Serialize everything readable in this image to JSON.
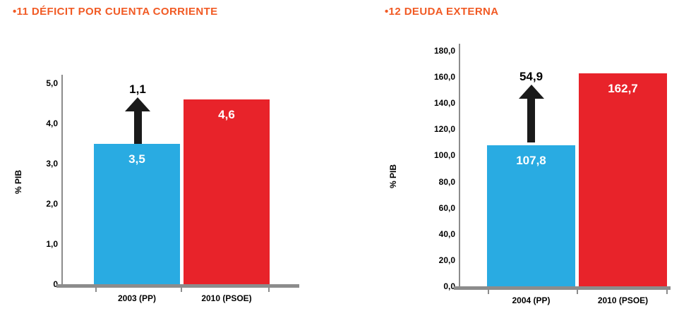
{
  "colors": {
    "title_orange": "#F15A24",
    "bar_blue": "#29ABE2",
    "bar_red": "#E8232A",
    "axis_gray": "#8C8C8C",
    "arrow_black": "#1A1A1A"
  },
  "chart_data": [
    {
      "type": "bar",
      "title": "•11 DÉFICIT POR CUENTA CORRIENTE",
      "ylabel": "% PIB",
      "ylim": [
        0,
        5
      ],
      "yticks": [
        "5,0",
        "4,0",
        "3,0",
        "2,0",
        "1,0",
        "0"
      ],
      "categories": [
        "2003 (PP)",
        "2010 (PSOE)"
      ],
      "values": [
        3.5,
        4.6
      ],
      "value_labels": [
        "3,5",
        "4,6"
      ],
      "series_colors": [
        "#29ABE2",
        "#E8232A"
      ],
      "annotation": {
        "label": "1,1",
        "icon": "arrow-up-icon"
      },
      "grid": false,
      "legend": "none"
    },
    {
      "type": "bar",
      "title": "•12 DEUDA EXTERNA",
      "ylabel": "% PIB",
      "ylim": [
        0,
        180
      ],
      "yticks": [
        "180,0",
        "160,0",
        "140,0",
        "120,0",
        "100,0",
        "80,0",
        "60,0",
        "40,0",
        "20,0",
        "0,0"
      ],
      "categories": [
        "2004 (PP)",
        "2010 (PSOE)"
      ],
      "values": [
        107.8,
        162.7
      ],
      "value_labels": [
        "107,8",
        "162,7"
      ],
      "series_colors": [
        "#29ABE2",
        "#E8232A"
      ],
      "annotation": {
        "label": "54,9",
        "icon": "arrow-up-icon"
      },
      "grid": false,
      "legend": "none"
    }
  ]
}
